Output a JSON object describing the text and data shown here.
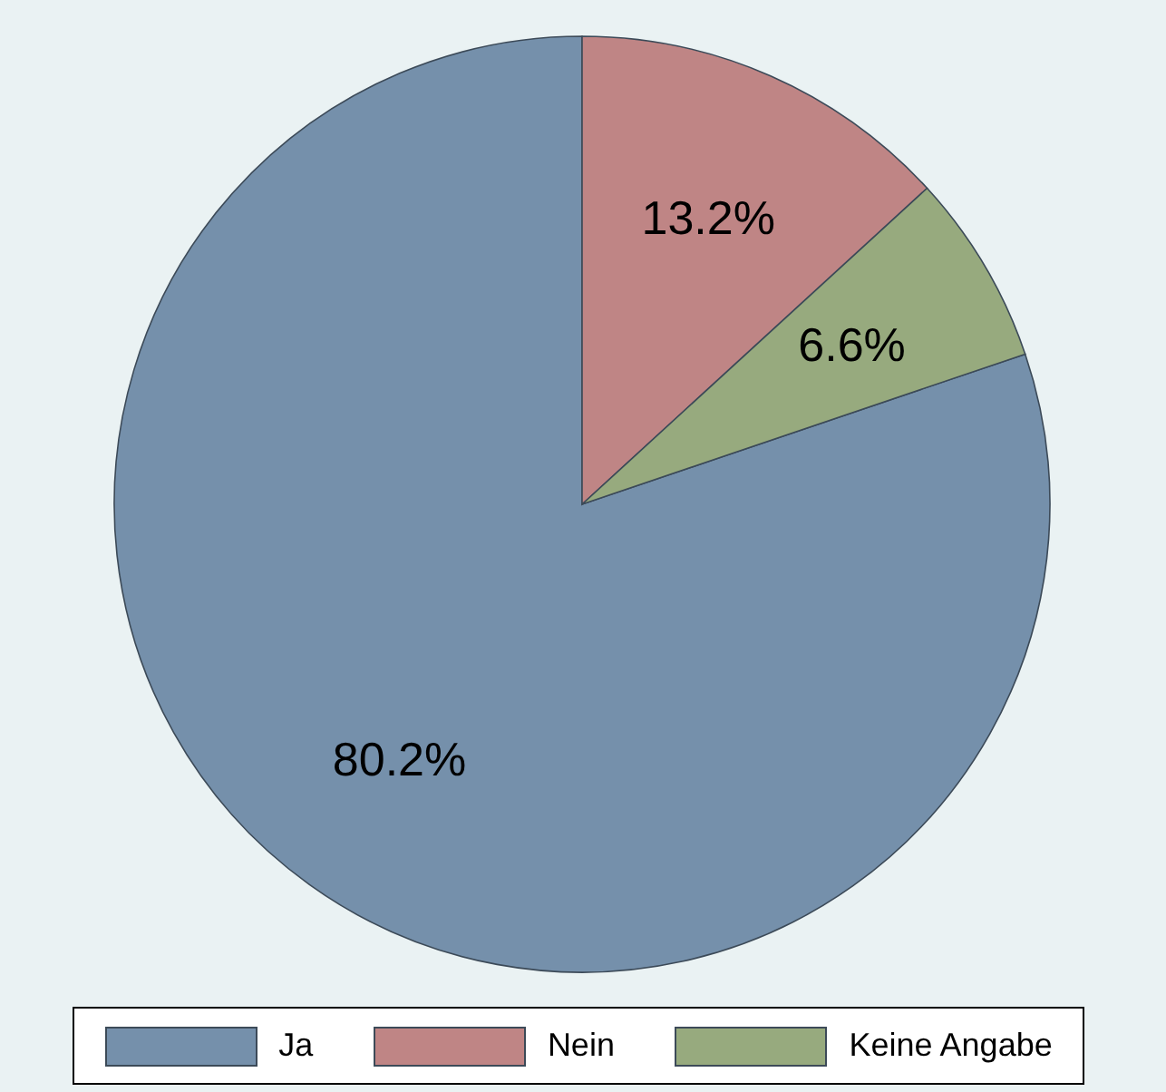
{
  "chart_data": {
    "type": "pie",
    "categories": [
      "Ja",
      "Nein",
      "Keine Angabe"
    ],
    "values": [
      80.2,
      13.2,
      6.6
    ],
    "colors": [
      "#7590ab",
      "#bf8585",
      "#97aa7e"
    ],
    "value_labels": [
      "80.2%",
      "13.2%",
      "6.6%"
    ],
    "legend": "bottom"
  }
}
